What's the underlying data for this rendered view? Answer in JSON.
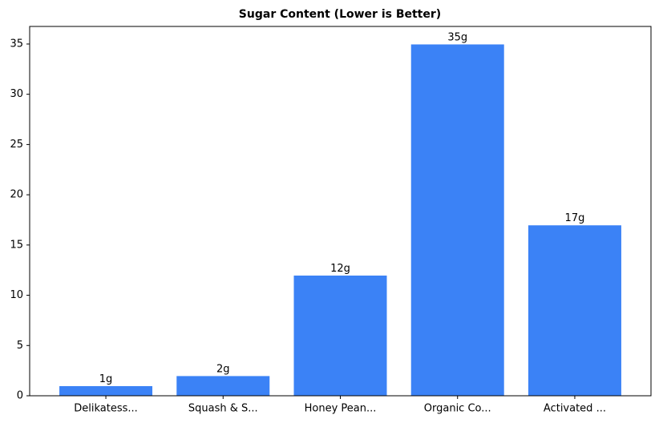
{
  "chart_data": {
    "type": "bar",
    "title": "Sugar Content (Lower is Better)",
    "categories": [
      "Delikatess...",
      "Squash & S...",
      "Honey Pean...",
      "Organic Co...",
      "Activated ..."
    ],
    "values": [
      1,
      2,
      12,
      35,
      17
    ],
    "value_labels": [
      "1g",
      "2g",
      "12g",
      "35g",
      "17g"
    ],
    "color": "#3b82f6",
    "ylim": [
      0,
      36.75
    ],
    "yticks": [
      0,
      5,
      10,
      15,
      20,
      25,
      30,
      35
    ],
    "grid": false
  }
}
